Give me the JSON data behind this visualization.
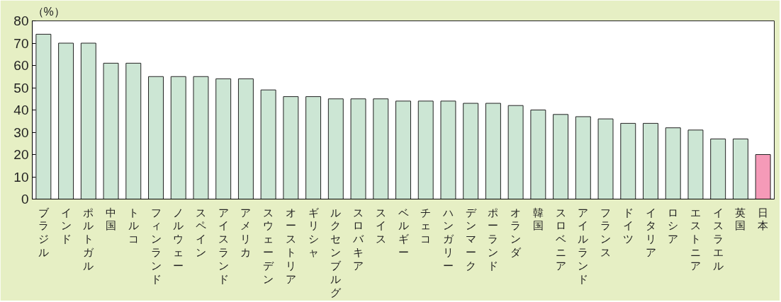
{
  "chart_data": {
    "type": "bar",
    "ylabel": "（%）",
    "categories": [
      "ブラジル",
      "インド",
      "ポルトガル",
      "中国",
      "トルコ",
      "フィンランド",
      "ノルウェー",
      "スペイン",
      "アイスランド",
      "アメリカ",
      "スウェーデン",
      "オーストリア",
      "ギリシャ",
      "ルクセンブルグ",
      "スロバキア",
      "スイス",
      "ベルギー",
      "チェコ",
      "ハンガリー",
      "デンマーク",
      "ポーランド",
      "オランダ",
      "韓国",
      "スロベニア",
      "アイルランド",
      "フランス",
      "ドイツ",
      "イタリア",
      "ロシア",
      "エストニア",
      "イスラエル",
      "英国",
      "日本"
    ],
    "values": [
      74,
      70,
      70,
      61,
      61,
      55,
      55,
      55,
      54,
      54,
      49,
      46,
      46,
      45,
      45,
      45,
      44,
      44,
      44,
      43,
      43,
      42,
      40,
      38,
      37,
      36,
      34,
      34,
      32,
      31,
      27,
      27,
      20
    ],
    "colors": [
      "#cce6d4",
      "#cce6d4",
      "#cce6d4",
      "#cce6d4",
      "#cce6d4",
      "#cce6d4",
      "#cce6d4",
      "#cce6d4",
      "#cce6d4",
      "#cce6d4",
      "#cce6d4",
      "#cce6d4",
      "#cce6d4",
      "#cce6d4",
      "#cce6d4",
      "#cce6d4",
      "#cce6d4",
      "#cce6d4",
      "#cce6d4",
      "#cce6d4",
      "#cce6d4",
      "#cce6d4",
      "#cce6d4",
      "#cce6d4",
      "#cce6d4",
      "#cce6d4",
      "#cce6d4",
      "#cce6d4",
      "#cce6d4",
      "#cce6d4",
      "#cce6d4",
      "#cce6d4",
      "#f59ab8"
    ],
    "ylim": [
      0,
      80
    ],
    "yticks": [
      0,
      10,
      20,
      30,
      40,
      50,
      60,
      70,
      80
    ],
    "grid": false
  }
}
